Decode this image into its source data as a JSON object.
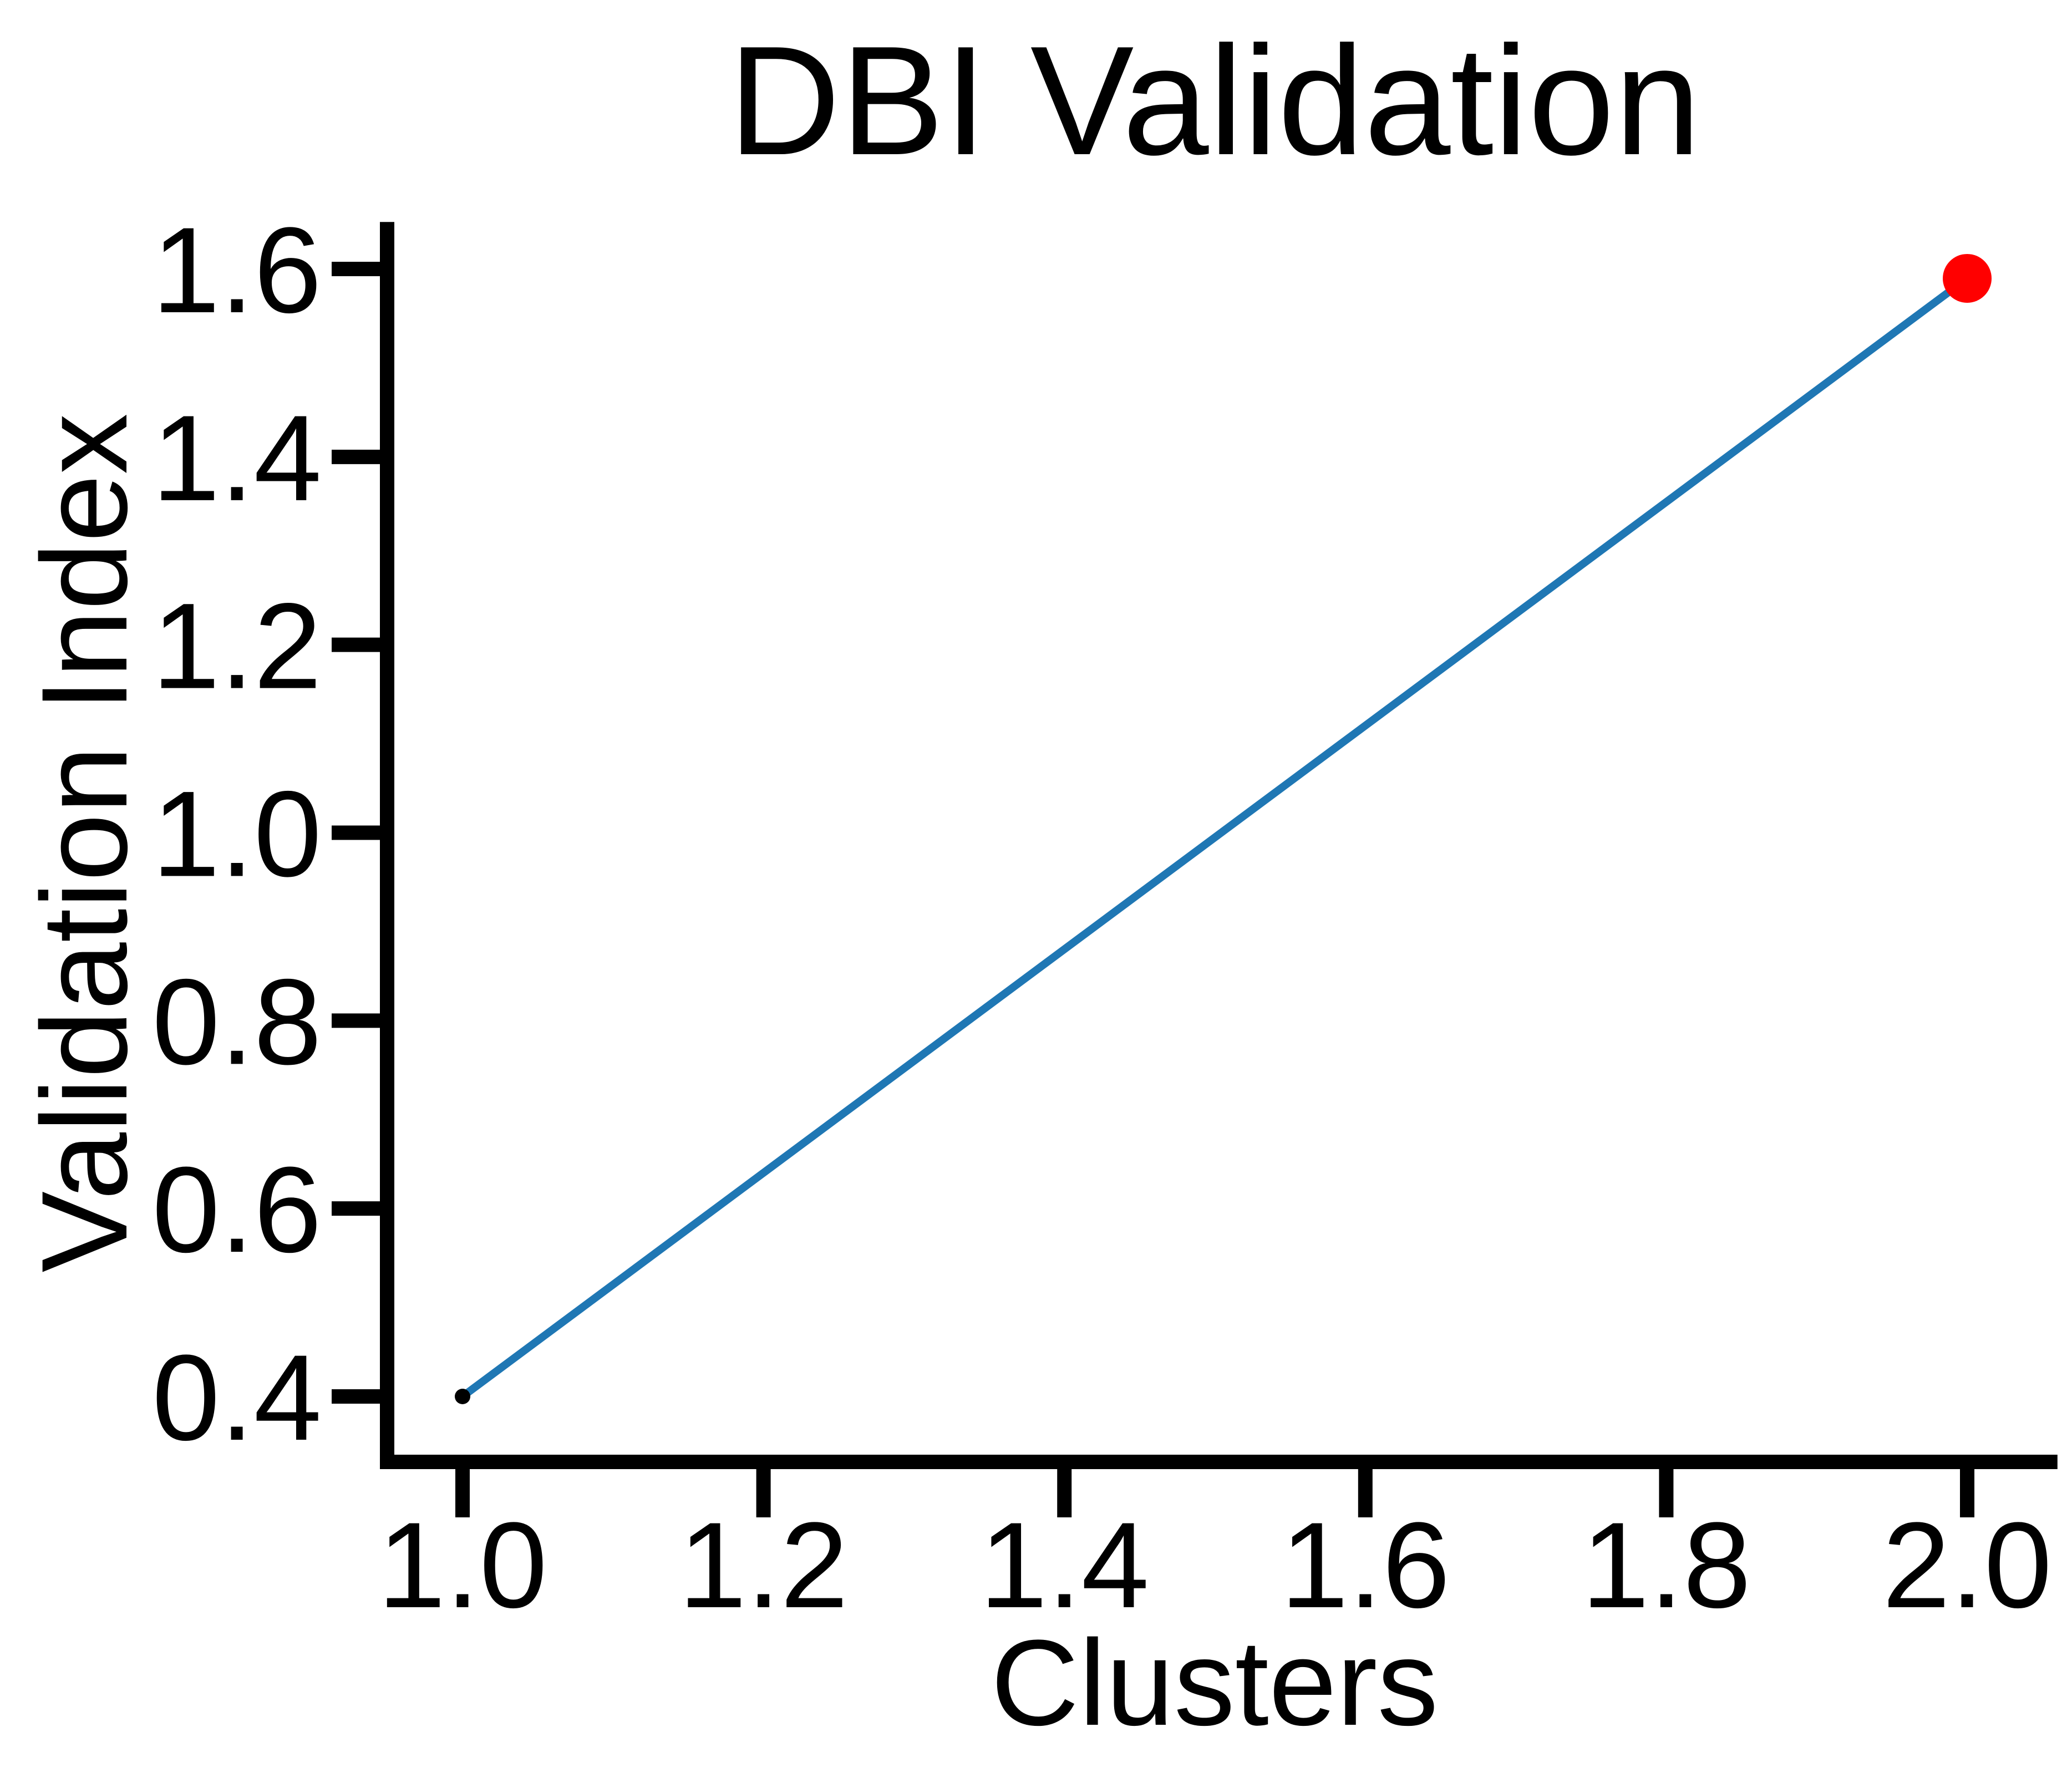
{
  "chart_data": {
    "type": "line",
    "title": "DBI Validation",
    "xlabel": "Clusters",
    "ylabel": "Validation Index",
    "xlim": [
      0.94,
      2.06
    ],
    "ylim": [
      0.34,
      1.65
    ],
    "x_ticks": [
      1.0,
      1.2,
      1.4,
      1.6,
      1.8,
      2.0
    ],
    "x_tick_labels": [
      "1.0",
      "1.2",
      "1.4",
      "1.6",
      "1.8",
      "2.0"
    ],
    "y_ticks": [
      0.4,
      0.6,
      0.8,
      1.0,
      1.2,
      1.4,
      1.6
    ],
    "y_tick_labels": [
      "0.4",
      "0.6",
      "0.8",
      "1.0",
      "1.2",
      "1.4",
      "1.6"
    ],
    "grid": false,
    "legend": "none",
    "series": [
      {
        "x": [
          1,
          2
        ],
        "y": [
          0.4,
          1.59
        ],
        "color": "#1f77b4"
      }
    ],
    "markers": [
      {
        "x": 1,
        "y": 0.4,
        "color": "#000000",
        "size": "small"
      },
      {
        "x": 2,
        "y": 1.59,
        "color": "#ff0000",
        "size": "large"
      }
    ]
  }
}
